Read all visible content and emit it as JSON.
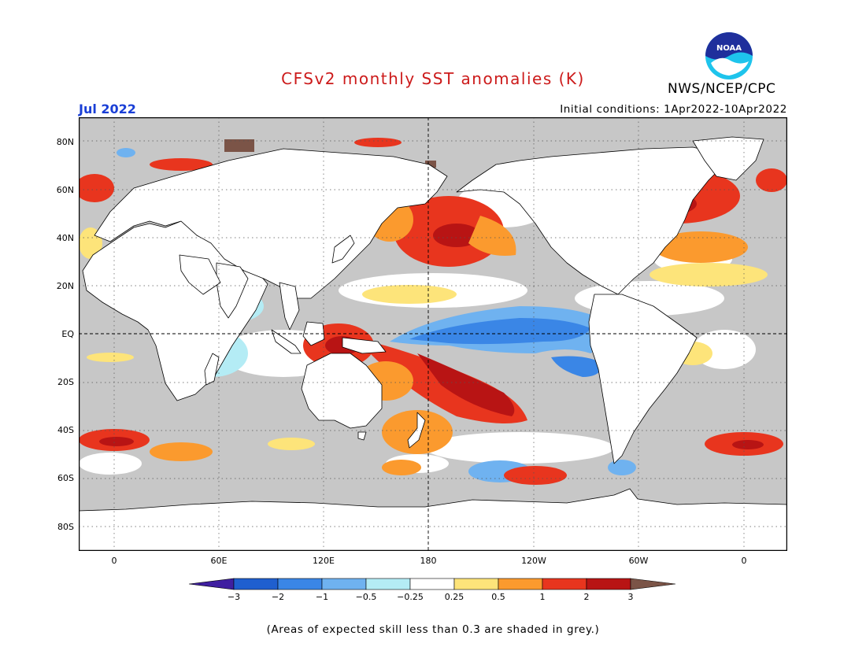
{
  "title": "CFSv2 monthly SST anomalies (K)",
  "agency": "NWS/NCEP/CPC",
  "logo_text": "NOAA",
  "month": "Jul 2022",
  "initial_conditions": "Initial conditions: 1Apr2022-10Apr2022",
  "footer": "(Areas of expected skill less than 0.3 are shaded in grey.)",
  "lat_labels": [
    "80N",
    "60N",
    "40N",
    "20N",
    "EQ",
    "20S",
    "40S",
    "60S",
    "80S"
  ],
  "lon_labels": [
    "0",
    "60E",
    "120E",
    "180",
    "120W",
    "60W",
    "0"
  ],
  "colorbar": {
    "labels": [
      "−3",
      "−2",
      "−1",
      "−0.5",
      "−0.25",
      "0.25",
      "0.5",
      "1",
      "2",
      "3"
    ],
    "colors": [
      "#3f1fa0",
      "#1f5fcf",
      "#3a86e6",
      "#6fb2f0",
      "#b4ecf5",
      "#ffffff",
      "#fde47a",
      "#fb9a2e",
      "#e8351e",
      "#b81414",
      "#7b5447"
    ]
  },
  "colors": {
    "land": "#ffffff",
    "low_skill": "#c7c7c7",
    "title": "#cc1a1a",
    "month": "#1a3fd6"
  }
}
